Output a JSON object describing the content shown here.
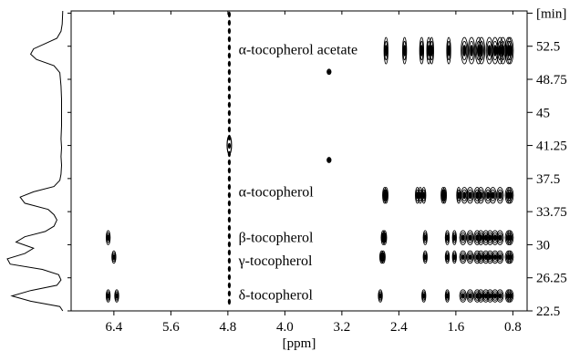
{
  "chart_data": {
    "type": "heatmap",
    "subtype": "2D contour plot (LC-NMR) with projected 1D trace",
    "title": "",
    "xlabel": "[ppm]",
    "ylabel": "[min]",
    "x_axis": {
      "reversed": true,
      "xlim": [
        7.0,
        0.6
      ],
      "ticks": [
        6.4,
        5.6,
        4.8,
        4.0,
        3.2,
        2.4,
        1.6,
        0.8
      ],
      "tick_labels": [
        "6.4",
        "5.6",
        "4.8",
        "4.0",
        "3.2",
        "2.4",
        "1.6",
        "0.8"
      ]
    },
    "y_axis": {
      "position": "right",
      "ylim": [
        22.5,
        56.5
      ],
      "ticks": [
        22.5,
        26.25,
        30,
        33.75,
        37.5,
        41.25,
        45,
        48.75,
        52.5,
        56.25
      ],
      "tick_labels": [
        "22.5",
        "26.25",
        "30",
        "33.75",
        "37.5",
        "41.25",
        "45",
        "48.75",
        "52.5",
        "[min]"
      ]
    },
    "grid": false,
    "annotations": [
      {
        "text": "α-tocopherol acetate",
        "x": 4.65,
        "y": 52.1
      },
      {
        "text": "α-tocopherol",
        "x": 4.65,
        "y": 36.0
      },
      {
        "text": "β-tocopherol",
        "x": 4.65,
        "y": 30.8
      },
      {
        "text": "γ-tocopherol",
        "x": 4.65,
        "y": 28.2
      },
      {
        "text": "δ-tocopherol",
        "x": 4.65,
        "y": 24.3
      }
    ],
    "compounds": [
      {
        "name": "α-tocopherol acetate",
        "t": 52.0,
        "h": 3.0,
        "peaks": [
          2.58,
          2.32,
          2.08,
          1.98,
          1.94,
          1.7,
          1.48,
          1.38,
          1.28,
          1.24,
          1.13,
          1.05,
          0.98,
          0.94,
          0.86,
          0.84
        ]
      },
      {
        "name": "α-tocopherol",
        "t": 35.6,
        "h": 1.8,
        "peaks": [
          2.6,
          2.58,
          2.14,
          2.1,
          2.05,
          1.78,
          1.76,
          1.56,
          1.48,
          1.4,
          1.3,
          1.25,
          1.15,
          1.08,
          0.98,
          0.86,
          0.84
        ]
      },
      {
        "name": "β-tocopherol",
        "t": 30.8,
        "h": 1.6,
        "peaks": [
          6.48,
          2.62,
          2.6,
          2.03,
          1.72,
          1.62,
          1.5,
          1.4,
          1.3,
          1.25,
          1.18,
          1.12,
          1.05,
          0.98,
          0.86,
          0.84
        ]
      },
      {
        "name": "γ-tocopherol",
        "t": 28.6,
        "h": 1.4,
        "peaks": [
          6.4,
          2.64,
          2.62,
          2.03,
          1.72,
          1.62,
          1.5,
          1.4,
          1.3,
          1.25,
          1.18,
          1.12,
          1.05,
          0.98,
          0.86,
          0.84
        ]
      },
      {
        "name": "δ-tocopherol",
        "t": 24.2,
        "h": 1.4,
        "peaks": [
          6.48,
          6.36,
          2.66,
          2.05,
          1.72,
          1.5,
          1.4,
          1.3,
          1.25,
          1.18,
          1.12,
          1.05,
          0.98,
          0.86,
          0.84
        ]
      },
      {
        "name": "",
        "t": 49.6,
        "h": 0.6,
        "peaks": [
          3.38
        ]
      },
      {
        "name": "",
        "t": 39.6,
        "h": 0.6,
        "peaks": [
          3.38
        ]
      }
    ],
    "residual_solvent_line": {
      "x": 4.78,
      "y_range": [
        22.5,
        56.5
      ]
    },
    "projection_trace": {
      "points": [
        [
          22.5,
          0.05
        ],
        [
          23.0,
          0.1
        ],
        [
          23.6,
          0.6
        ],
        [
          24.2,
          0.92
        ],
        [
          24.8,
          0.6
        ],
        [
          25.4,
          0.15
        ],
        [
          26.0,
          0.08
        ],
        [
          26.6,
          0.12
        ],
        [
          27.2,
          0.4
        ],
        [
          27.8,
          0.95
        ],
        [
          28.4,
          1.0
        ],
        [
          29.0,
          0.7
        ],
        [
          29.6,
          0.55
        ],
        [
          30.3,
          0.85
        ],
        [
          30.9,
          0.7
        ],
        [
          31.5,
          0.35
        ],
        [
          32.1,
          0.2
        ],
        [
          32.8,
          0.15
        ],
        [
          33.4,
          0.2
        ],
        [
          34.0,
          0.3
        ],
        [
          34.7,
          0.7
        ],
        [
          35.4,
          0.78
        ],
        [
          36.0,
          0.55
        ],
        [
          36.6,
          0.2
        ],
        [
          37.3,
          0.1
        ],
        [
          38.0,
          0.08
        ],
        [
          39.0,
          0.07
        ],
        [
          40.0,
          0.08
        ],
        [
          41.0,
          0.07
        ],
        [
          42.0,
          0.08
        ],
        [
          43.5,
          0.07
        ],
        [
          45.0,
          0.07
        ],
        [
          46.5,
          0.07
        ],
        [
          48.0,
          0.08
        ],
        [
          49.5,
          0.1
        ],
        [
          50.3,
          0.2
        ],
        [
          51.0,
          0.5
        ],
        [
          51.6,
          0.6
        ],
        [
          52.2,
          0.55
        ],
        [
          52.8,
          0.35
        ],
        [
          53.4,
          0.15
        ],
        [
          54.2,
          0.08
        ],
        [
          55.0,
          0.06
        ],
        [
          56.5,
          0.05
        ]
      ]
    }
  }
}
